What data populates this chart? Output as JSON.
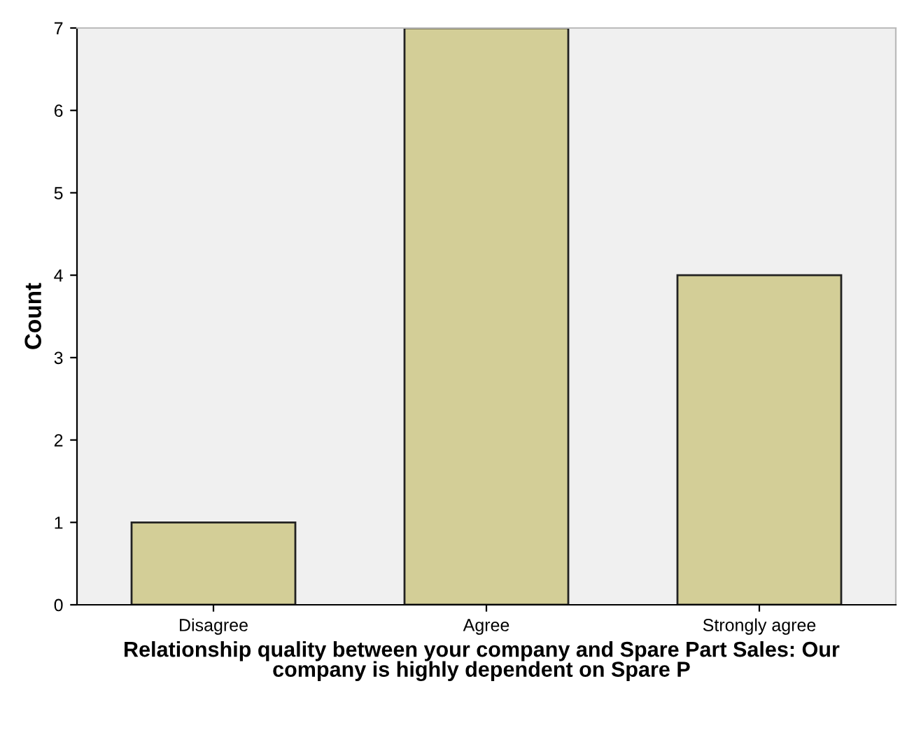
{
  "chart_data": {
    "type": "bar",
    "xlabel": "Relationship quality between your company and Spare Part Sales: Our company is highly dependent on Spare P",
    "ylabel": "Count",
    "categories": [
      "Disagree",
      "Agree",
      "Strongly agree"
    ],
    "values": [
      1,
      7,
      4
    ],
    "color": "#d3ce97",
    "ylim": [
      0,
      7
    ],
    "yticks": [
      0,
      1,
      2,
      3,
      4,
      5,
      6,
      7
    ],
    "grid": false,
    "legend": false
  }
}
